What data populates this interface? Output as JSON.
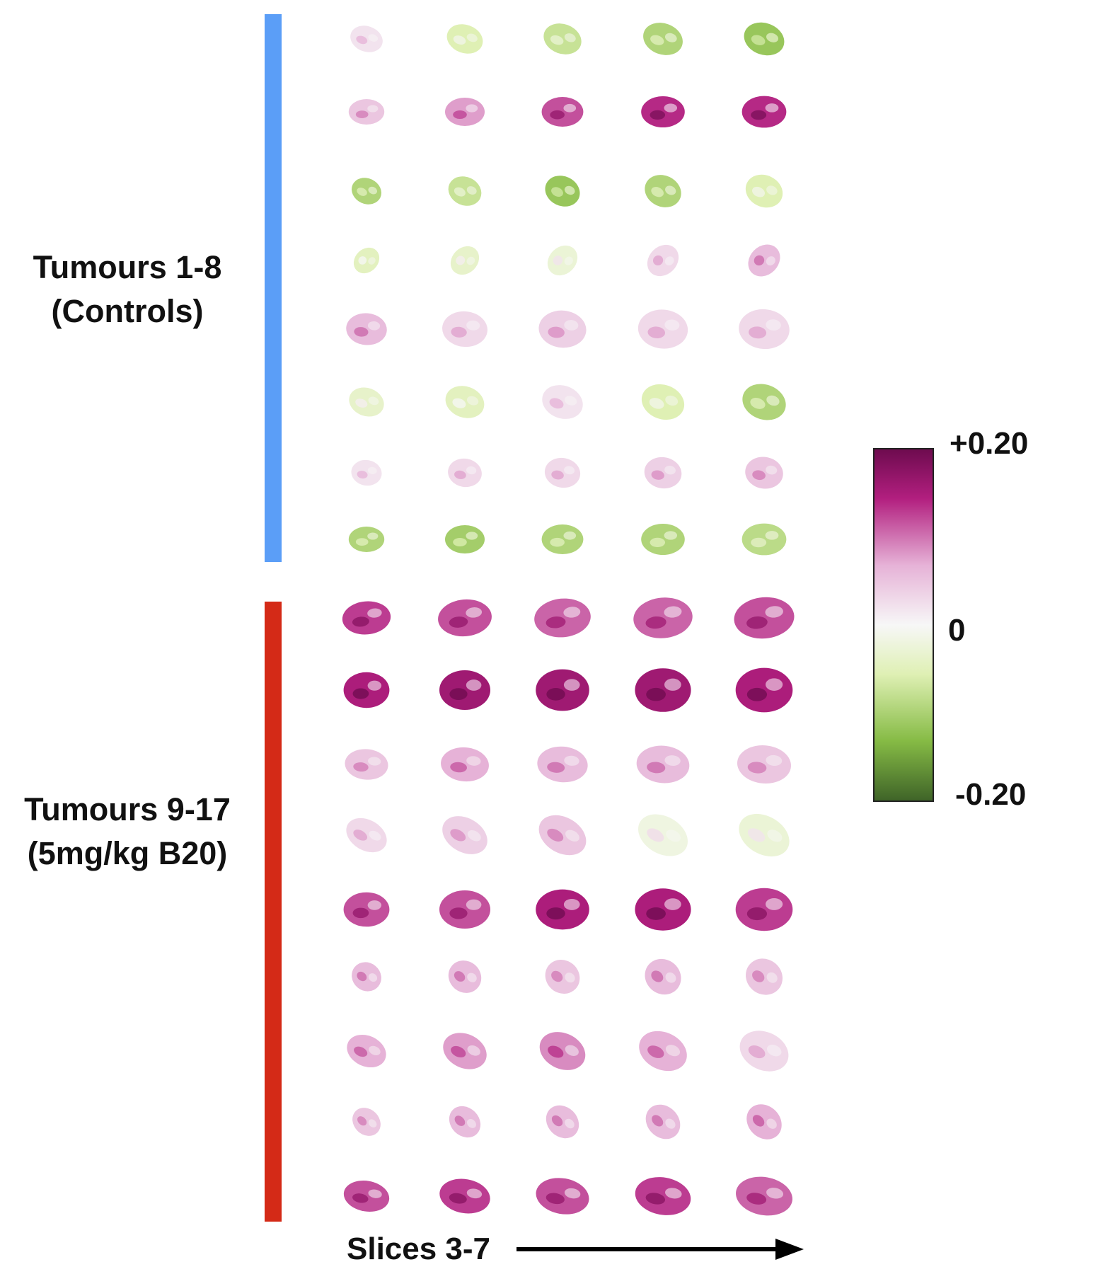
{
  "groups": {
    "controls": {
      "title": "Tumours 1-8",
      "subtitle": "(Controls)",
      "bar_color": "#5b9ef7"
    },
    "treated": {
      "title": "Tumours 9-17",
      "subtitle": "(5mg/kg B20)",
      "bar_color": "#d42a17"
    }
  },
  "colorbar": {
    "max_label": "+0.20",
    "mid_label": "0",
    "min_label": "-0.20",
    "colors": {
      "max": "#6e0b4f",
      "high": "#b21f7f",
      "mid_high": "#e6b2d7",
      "zero": "#f7f7f7",
      "mid_low": "#dff0b4",
      "low": "#86bb45",
      "min": "#3f6428"
    }
  },
  "axis": {
    "slices_label": "Slices 3-7"
  },
  "tumours": [
    {
      "id": 1,
      "group": "controls",
      "values": [
        0.02,
        -0.06,
        -0.08,
        -0.1,
        -0.12
      ]
    },
    {
      "id": 2,
      "group": "controls",
      "values": [
        0.05,
        0.08,
        0.12,
        0.14,
        0.14
      ]
    },
    {
      "id": 3,
      "group": "controls",
      "values": [
        -0.1,
        -0.08,
        -0.12,
        -0.1,
        -0.06
      ]
    },
    {
      "id": 4,
      "group": "controls",
      "values": [
        -0.05,
        -0.04,
        -0.03,
        0.03,
        0.06
      ]
    },
    {
      "id": 5,
      "group": "controls",
      "values": [
        0.06,
        0.03,
        0.04,
        0.03,
        0.03
      ]
    },
    {
      "id": 6,
      "group": "controls",
      "values": [
        -0.04,
        -0.05,
        0.02,
        -0.06,
        -0.1
      ]
    },
    {
      "id": 7,
      "group": "controls",
      "values": [
        0.02,
        0.03,
        0.03,
        0.04,
        0.05
      ]
    },
    {
      "id": 8,
      "group": "controls",
      "values": [
        -0.1,
        -0.11,
        -0.1,
        -0.1,
        -0.09
      ]
    },
    {
      "id": 9,
      "group": "treated",
      "values": [
        0.13,
        0.12,
        0.11,
        0.11,
        0.12
      ]
    },
    {
      "id": 10,
      "group": "treated",
      "values": [
        0.15,
        0.16,
        0.16,
        0.16,
        0.15
      ]
    },
    {
      "id": 11,
      "group": "treated",
      "values": [
        0.05,
        0.07,
        0.06,
        0.06,
        0.05
      ]
    },
    {
      "id": 12,
      "group": "treated",
      "values": [
        0.03,
        0.04,
        0.05,
        -0.02,
        -0.03
      ]
    },
    {
      "id": 13,
      "group": "treated",
      "values": [
        0.12,
        0.12,
        0.15,
        0.15,
        0.13
      ]
    },
    {
      "id": 14,
      "group": "treated",
      "values": [
        0.06,
        0.06,
        0.05,
        0.06,
        0.05
      ]
    },
    {
      "id": 15,
      "group": "treated",
      "values": [
        0.07,
        0.08,
        0.09,
        0.07,
        0.03
      ]
    },
    {
      "id": 16,
      "group": "treated",
      "values": [
        0.05,
        0.06,
        0.06,
        0.06,
        0.07
      ]
    },
    {
      "id": 17,
      "group": "treated",
      "values": [
        0.12,
        0.13,
        0.12,
        0.13,
        0.11
      ]
    }
  ]
}
